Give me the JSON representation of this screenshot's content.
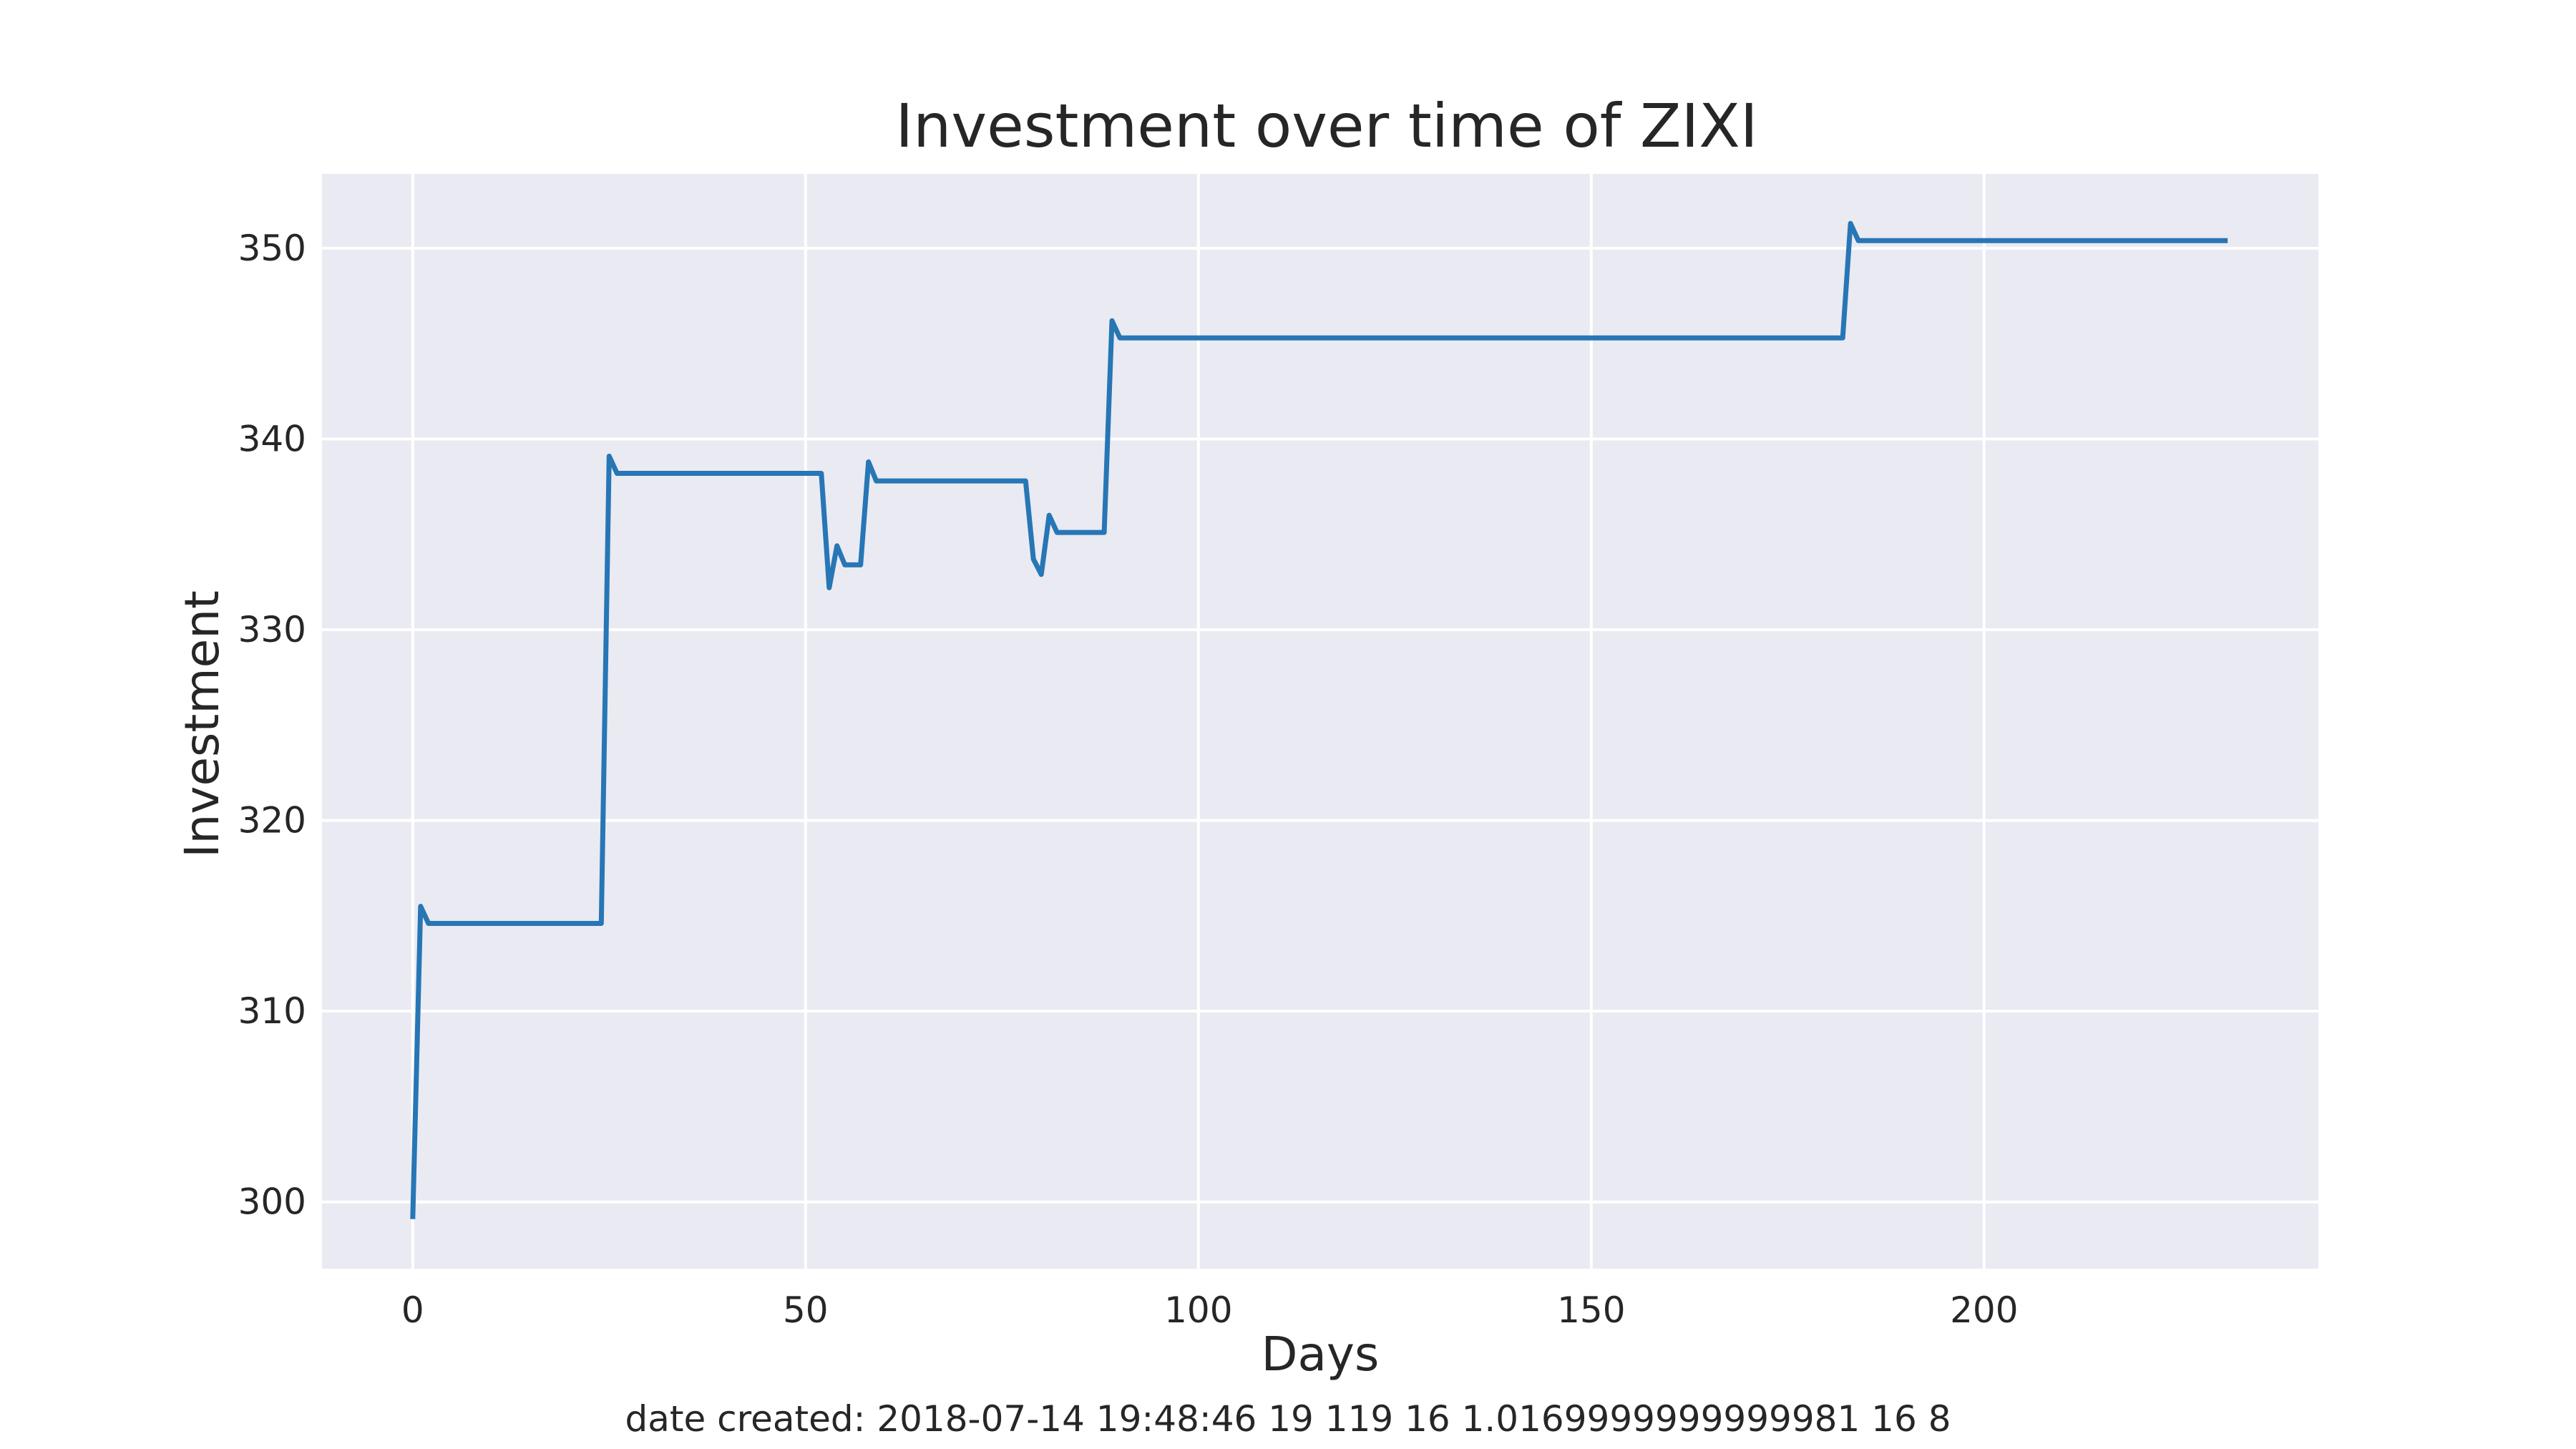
{
  "chart_data": {
    "type": "line",
    "title": "Investment over time of ZIXI",
    "xlabel": "Days",
    "ylabel": "Investment",
    "footer": "date created: 2018-07-14 19:48:46 19 119 16 1.0169999999999981 16 8",
    "xlim": [
      -11.55,
      242.55
    ],
    "ylim": [
      296.5,
      353.9
    ],
    "x_ticks": [
      0,
      50,
      100,
      150,
      200
    ],
    "y_ticks": [
      300,
      310,
      320,
      330,
      340,
      350
    ],
    "grid": true,
    "style": "seaborn-darkgrid",
    "colors": {
      "line": "#2776b5",
      "plot_background": "#eaeaf2",
      "grid": "#ffffff",
      "text": "#262626"
    },
    "series": [
      {
        "x": [
          0,
          1,
          2,
          24,
          25,
          26,
          52,
          53,
          54,
          55,
          57,
          58,
          59,
          78,
          79,
          80,
          81,
          82,
          88,
          89,
          90,
          182,
          183,
          184,
          231
        ],
        "y": [
          299.1,
          315.5,
          314.6,
          314.6,
          339.1,
          338.2,
          338.2,
          332.2,
          334.4,
          333.4,
          333.4,
          338.8,
          337.8,
          337.8,
          333.7,
          332.9,
          336.0,
          335.1,
          335.1,
          346.2,
          345.3,
          345.3,
          351.3,
          350.4,
          350.4
        ]
      }
    ]
  }
}
